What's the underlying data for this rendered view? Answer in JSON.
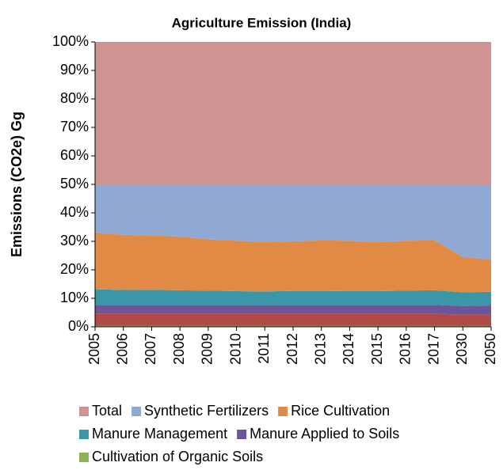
{
  "chart_data": {
    "type": "stacked_area_percent",
    "title": "Agriculture Emission (India)",
    "y_label": "Emissions (CO2e) Gg",
    "categories": [
      "2005",
      "2006",
      "2007",
      "2008",
      "2009",
      "2010",
      "2011",
      "2012",
      "2013",
      "2014",
      "2015",
      "2016",
      "2017",
      "2030",
      "2050"
    ],
    "ylim": [
      0,
      100
    ],
    "yticks": [
      {
        "value": 0,
        "label": "0%"
      },
      {
        "value": 10,
        "label": "10%"
      },
      {
        "value": 20,
        "label": "20%"
      },
      {
        "value": 30,
        "label": "30%"
      },
      {
        "value": 40,
        "label": "40%"
      },
      {
        "value": 50,
        "label": "50%"
      },
      {
        "value": 60,
        "label": "60%"
      },
      {
        "value": 70,
        "label": "70%"
      },
      {
        "value": 80,
        "label": "80%"
      },
      {
        "value": 90,
        "label": "90%"
      },
      {
        "value": 100,
        "label": "100%"
      }
    ],
    "series": [
      {
        "name": "Total",
        "color": "#d09391",
        "values": [
          50,
          50,
          50,
          50,
          50,
          50,
          50,
          50,
          50,
          50,
          50,
          50,
          50,
          50,
          50
        ]
      },
      {
        "name": "Synthetic Fertilizers",
        "color": "#8fa9d4",
        "values": [
          17,
          17.7,
          18,
          18.3,
          19.3,
          19.8,
          20.2,
          20,
          19.7,
          19.8,
          20.3,
          19.8,
          19.7,
          25.5,
          26.5
        ]
      },
      {
        "name": "Rice Cultivation",
        "color": "#e08a45",
        "values": [
          19.8,
          19.4,
          19,
          18.9,
          18,
          17.7,
          17.4,
          17.4,
          17.7,
          17.7,
          17.2,
          17.5,
          17.5,
          12.4,
          11.2
        ]
      },
      {
        "name": "Manure Management",
        "color": "#3a97a8",
        "values": [
          5.5,
          5.2,
          5.3,
          5.1,
          5,
          4.8,
          4.7,
          4.9,
          4.9,
          4.8,
          4.8,
          5,
          5.1,
          4.8,
          4.8
        ]
      },
      {
        "name": "Manure Applied to Soils",
        "color": "#6d559a",
        "values": [
          3,
          3,
          3,
          3,
          3,
          3,
          3,
          3,
          3,
          3,
          3,
          3,
          3,
          3.1,
          3.3
        ]
      },
      {
        "color": "#b04a47",
        "values": [
          4.4,
          4.4,
          4.4,
          4.4,
          4.4,
          4.4,
          4.4,
          4.4,
          4.4,
          4.4,
          4.4,
          4.4,
          4.4,
          3.9,
          3.9
        ]
      },
      {
        "name": "Cultivation of Organic Soils",
        "color": "#8db255",
        "values": [
          0.3,
          0.3,
          0.3,
          0.3,
          0.3,
          0.3,
          0.3,
          0.3,
          0.3,
          0.3,
          0.3,
          0.3,
          0.3,
          0.3,
          0.3
        ]
      }
    ]
  }
}
